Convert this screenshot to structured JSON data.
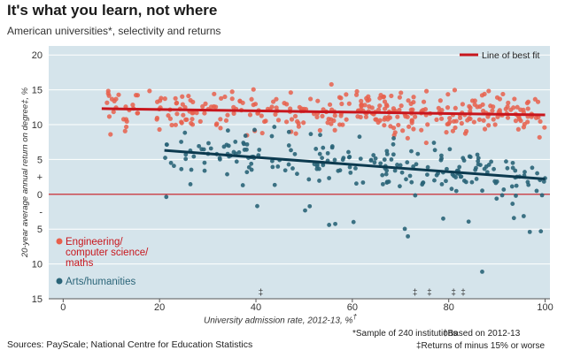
{
  "header": {
    "title": "It's what you learn, not where",
    "subtitle": "American universities*, selectivity and returns"
  },
  "footer": {
    "source": "Sources: PayScale; National Centre for Education Statistics",
    "note_sample": "*Sample of 240 institutions",
    "note_based": "†Based on 2012-13",
    "note_returns": "‡Returns of minus 15% or worse"
  },
  "colors": {
    "plot_background": "#d5e4eb",
    "engineering": "#e8604c",
    "engineering_line": "#c8161d",
    "arts": "#2a6478",
    "arts_line": "#0c3a4f"
  },
  "chart_data": {
    "type": "scatter",
    "xlabel": "University admission rate, 2012-13, %",
    "xlabel_mark": "†",
    "ylabel": "20-year average annual return on degree‡, %",
    "xlim": [
      -3,
      101
    ],
    "ylim": [
      -15,
      21.3
    ],
    "xticks": [
      "0",
      "20",
      "40",
      "60",
      "80",
      "100"
    ],
    "yticks": [
      "20",
      "15",
      "10",
      "5",
      "+",
      "0",
      "-",
      "5",
      "10",
      "15"
    ],
    "legend_line": "Line of best fit",
    "series": [
      {
        "name": "Engineering/ computer science/ maths",
        "label_lines": [
          "Engineering/",
          "computer science/",
          "maths"
        ],
        "fit": [
          [
            8,
            12.3
          ],
          [
            100,
            11.4
          ]
        ]
      },
      {
        "name": "Arts/humanities",
        "label_lines": [
          "Arts/humanities"
        ],
        "fit": [
          [
            21,
            6.3
          ],
          [
            100,
            2.2
          ]
        ]
      }
    ],
    "offscale_markers": [
      41,
      73,
      76,
      81,
      83
    ]
  }
}
